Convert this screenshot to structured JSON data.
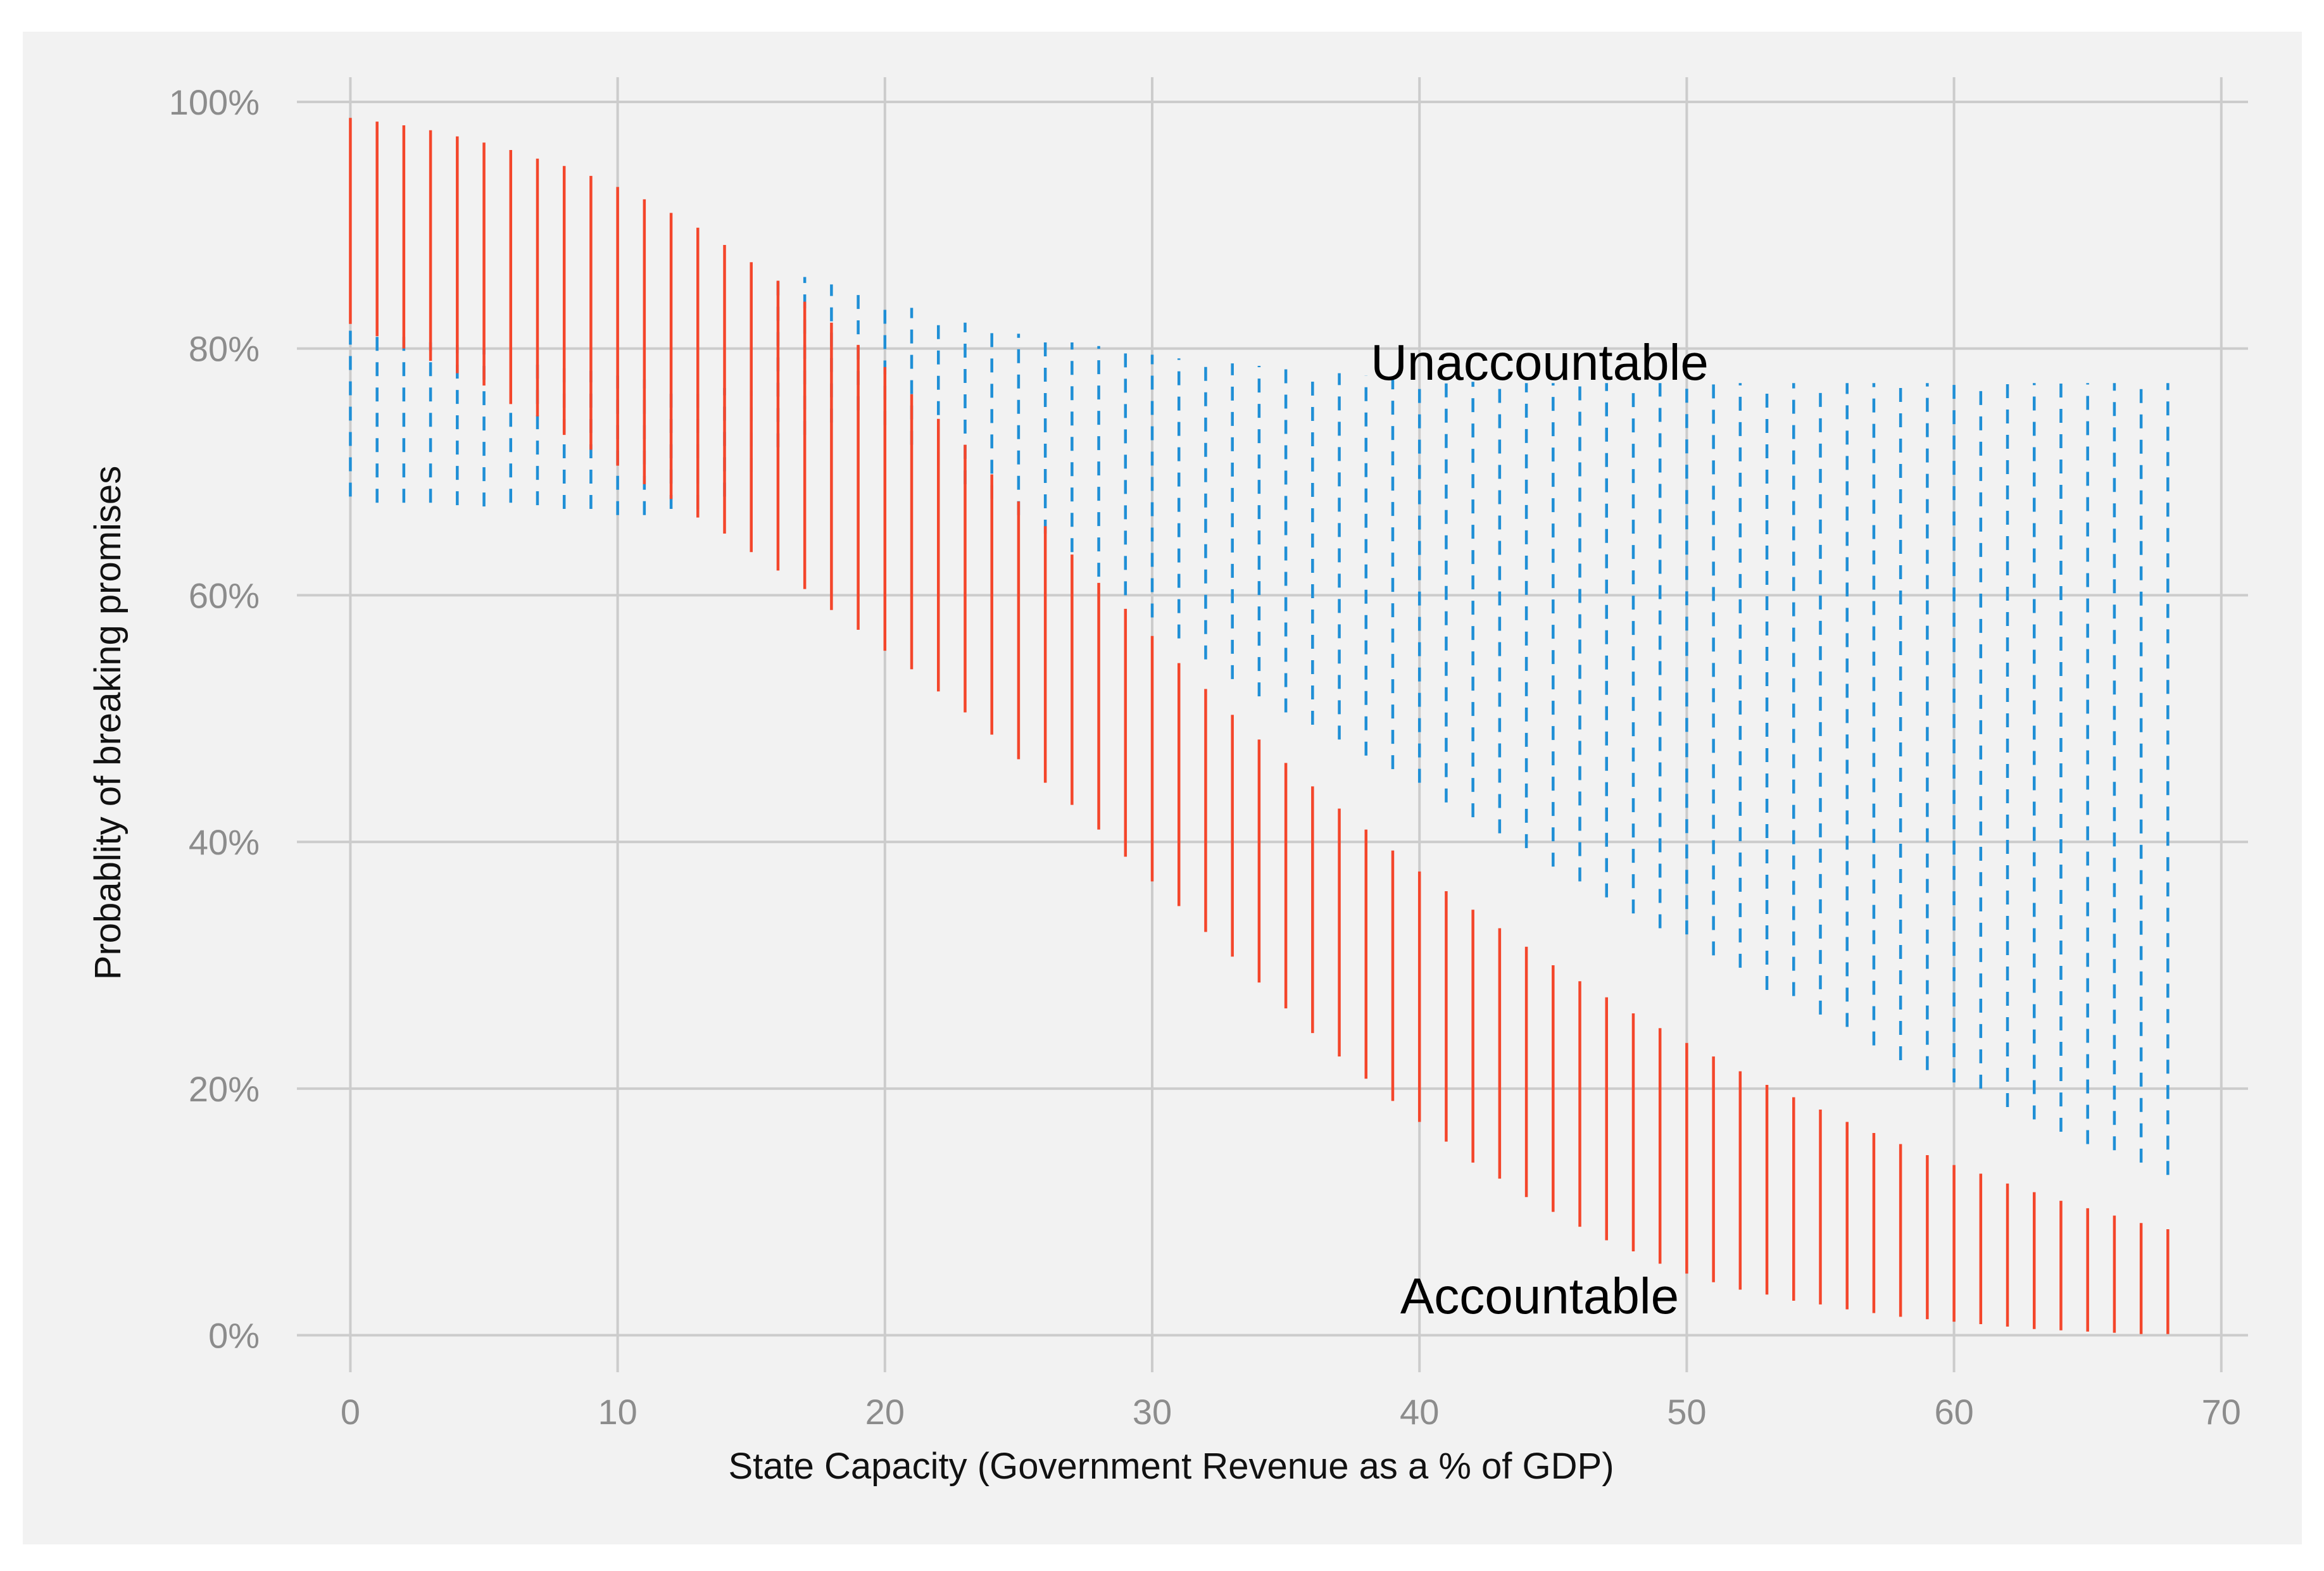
{
  "chart_data": {
    "type": "errorbar",
    "title": "",
    "xlabel": "State Capacity (Government Revenue as a % of GDP)",
    "ylabel": "Probablity of breaking promises",
    "xlim": [
      -2,
      71
    ],
    "ylim": [
      -3,
      102
    ],
    "x_ticks": [
      0,
      10,
      20,
      30,
      40,
      50,
      60,
      70
    ],
    "x_tick_labels": [
      "0",
      "10",
      "20",
      "30",
      "40",
      "50",
      "60",
      "70"
    ],
    "y_ticks": [
      0,
      20,
      40,
      60,
      80,
      100
    ],
    "y_tick_labels": [
      "0%",
      "20%",
      "40%",
      "60%",
      "80%",
      "100%"
    ],
    "grid": true,
    "annotations": [
      {
        "text": "Unaccountable",
        "x": 45,
        "y": 79
      },
      {
        "text": "Accountable",
        "x": 45,
        "y": 2
      }
    ],
    "x": [
      0,
      1,
      2,
      3,
      4,
      5,
      6,
      7,
      8,
      9,
      10,
      11,
      12,
      13,
      14,
      15,
      16,
      17,
      18,
      19,
      20,
      21,
      22,
      23,
      24,
      25,
      26,
      27,
      28,
      29,
      30,
      31,
      32,
      33,
      34,
      35,
      36,
      37,
      38,
      39,
      40,
      41,
      42,
      43,
      44,
      45,
      46,
      47,
      48,
      49,
      50,
      51,
      52,
      53,
      54,
      55,
      56,
      57,
      58,
      59,
      60,
      61,
      62,
      63,
      64,
      65,
      66,
      67,
      68
    ],
    "series": [
      {
        "name": "Unaccountable",
        "style": "dashed",
        "color": "#1f8fd6",
        "lower": [
          68,
          67.5,
          67.5,
          67.5,
          67.3,
          67.2,
          67.5,
          67.3,
          67,
          67,
          66.5,
          66.5,
          67,
          67,
          68,
          70,
          72,
          73,
          74,
          75,
          73.8,
          72.2,
          70.5,
          69,
          67.8,
          66.5,
          65,
          63.5,
          61.5,
          60,
          58.2,
          56.5,
          54.8,
          53.2,
          51.8,
          50.5,
          49.5,
          48.3,
          47,
          45.9,
          44.8,
          43.2,
          42,
          40.7,
          39.5,
          38,
          36.8,
          35.5,
          34.2,
          33,
          32.5,
          30.8,
          29.8,
          28,
          27.5,
          26,
          25,
          23.5,
          22.3,
          21.5,
          20.5,
          20,
          18.5,
          17.5,
          16.5,
          15.5,
          15,
          14,
          13
        ],
        "upper": [
          82,
          81.5,
          81,
          80.5,
          80.3,
          80,
          79.5,
          79,
          78.6,
          78.2,
          77.8,
          77.5,
          77.2,
          77,
          76.8,
          76.6,
          86.3,
          85.8,
          85.2,
          84.6,
          83.9,
          83.3,
          82.7,
          82.1,
          81.5,
          81.2,
          80.9,
          80.5,
          80.2,
          79.8,
          79.5,
          79.2,
          79,
          78.8,
          78.6,
          78.4,
          78.2,
          78,
          77.8,
          77.6,
          77.5,
          77.4,
          77.3,
          77.2,
          77.2,
          77.2,
          77.2,
          77.2,
          77.2,
          77.2,
          77.2,
          77.2,
          77.2,
          77.2,
          77.2,
          77.2,
          77.2,
          77.2,
          77.2,
          77.2,
          77.2,
          77.2,
          77.2,
          77.2,
          77.2,
          77.2,
          77.2,
          77.2,
          77.2
        ]
      },
      {
        "name": "Accountable",
        "style": "solid",
        "color": "#f4462b",
        "lower": [
          82,
          81,
          80,
          79,
          78,
          77,
          75.5,
          74.5,
          73,
          71.8,
          70.5,
          69,
          67.8,
          66.3,
          65,
          63.5,
          62,
          60.5,
          58.8,
          57.2,
          55.5,
          54,
          52.2,
          50.5,
          48.7,
          46.7,
          44.8,
          43,
          41,
          38.8,
          36.8,
          34.8,
          32.7,
          30.7,
          28.6,
          26.5,
          24.5,
          22.6,
          20.8,
          19,
          17.3,
          15.7,
          14,
          12.7,
          11.2,
          10,
          8.8,
          7.7,
          6.8,
          5.8,
          5,
          4.3,
          3.7,
          3.3,
          2.8,
          2.5,
          2.1,
          1.8,
          1.5,
          1.3,
          1.1,
          0.9,
          0.7,
          0.5,
          0.4,
          0.3,
          0.2,
          0.1,
          0.1
        ],
        "upper": [
          98.7,
          98.4,
          98.1,
          97.7,
          97.2,
          96.7,
          96.1,
          95.4,
          94.8,
          94,
          93.1,
          92.1,
          91,
          89.8,
          88.4,
          87,
          85.5,
          83.8,
          82.1,
          80.3,
          78.5,
          76.3,
          74.3,
          72.2,
          69.8,
          67.6,
          65.6,
          63.3,
          61,
          58.9,
          56.7,
          54.5,
          52.4,
          50.3,
          48.3,
          46.4,
          44.5,
          42.7,
          41,
          39.3,
          37.6,
          36,
          34.5,
          33,
          31.5,
          30,
          28.7,
          27.4,
          26.1,
          24.9,
          23.7,
          22.6,
          21.4,
          20.3,
          19.3,
          18.3,
          17.3,
          16.4,
          15.5,
          14.6,
          13.8,
          13.1,
          12.3,
          11.6,
          10.9,
          10.3,
          9.7,
          9.1,
          8.6
        ]
      }
    ]
  }
}
